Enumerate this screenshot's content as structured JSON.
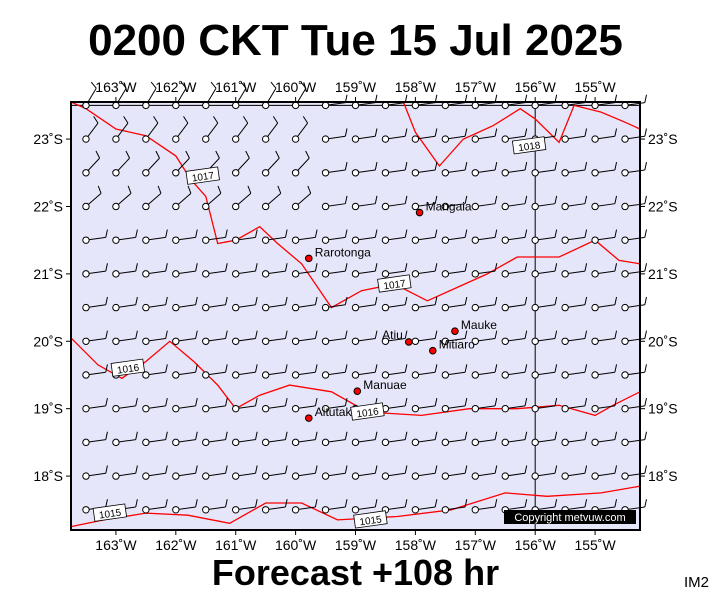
{
  "title": "0200 CKT Tue 15 Jul 2025",
  "footer": "Forecast +108 hr",
  "code": "IM2",
  "copyright": "Copyright metvuw.com",
  "colors": {
    "ocean": "#e6e6fa",
    "isobar": "#ff0000",
    "frame": "#000000",
    "place_dot": "#ff0000"
  },
  "chart_data": {
    "type": "map",
    "lon_range": [
      -163.75,
      -154.25
    ],
    "lat_range": [
      -23.55,
      -17.2
    ],
    "lon_ticks": [
      {
        "v": -163,
        "label": "163˚W"
      },
      {
        "v": -162,
        "label": "162˚W"
      },
      {
        "v": -161,
        "label": "161˚W"
      },
      {
        "v": -160,
        "label": "160˚W"
      },
      {
        "v": -159,
        "label": "159˚W"
      },
      {
        "v": -158,
        "label": "158˚W"
      },
      {
        "v": -157,
        "label": "157˚W"
      },
      {
        "v": -156,
        "label": "156˚W"
      },
      {
        "v": -155,
        "label": "155˚W"
      }
    ],
    "lat_ticks": [
      {
        "v": -18,
        "label": "18˚S"
      },
      {
        "v": -19,
        "label": "19˚S"
      },
      {
        "v": -20,
        "label": "20˚S"
      },
      {
        "v": -21,
        "label": "21˚S"
      },
      {
        "v": -22,
        "label": "22˚S"
      },
      {
        "v": -23,
        "label": "23˚S"
      }
    ],
    "places": [
      {
        "name": "Aitutaki",
        "lon": -159.78,
        "lat": -18.86,
        "label_side": "right"
      },
      {
        "name": "Manuae",
        "lon": -158.97,
        "lat": -19.26,
        "label_side": "right"
      },
      {
        "name": "Mitiaro",
        "lon": -157.71,
        "lat": -19.86,
        "label_side": "right"
      },
      {
        "name": "Atiu",
        "lon": -158.11,
        "lat": -19.99,
        "label_side": "left"
      },
      {
        "name": "Mauke",
        "lon": -157.34,
        "lat": -20.15,
        "label_side": "right"
      },
      {
        "name": "Rarotonga",
        "lon": -159.78,
        "lat": -21.23,
        "label_side": "right"
      },
      {
        "name": "Mangaia",
        "lon": -157.93,
        "lat": -21.91,
        "label_side": "right"
      }
    ],
    "isobars": [
      {
        "label": "1015",
        "label_at": [
          -163.1,
          -17.45
        ],
        "points": [
          [
            -163.75,
            -17.25
          ],
          [
            -163.2,
            -17.35
          ],
          [
            -162.5,
            -17.45
          ],
          [
            -161.8,
            -17.42
          ],
          [
            -161.1,
            -17.3
          ],
          [
            -160.5,
            -17.6
          ],
          [
            -159.9,
            -17.6
          ],
          [
            -159.3,
            -17.35
          ],
          [
            -158.3,
            -17.4
          ],
          [
            -157.4,
            -17.5
          ],
          [
            -156.5,
            -17.75
          ],
          [
            -155.8,
            -17.7
          ],
          [
            -154.9,
            -17.75
          ],
          [
            -154.25,
            -17.85
          ]
        ]
      },
      {
        "label": "1015",
        "label_at": [
          -158.75,
          -17.35
        ],
        "points": []
      },
      {
        "label": "1016",
        "label_at": [
          -158.8,
          -18.95
        ],
        "points": [
          [
            -163.75,
            -20.05
          ],
          [
            -163.3,
            -19.65
          ],
          [
            -162.9,
            -19.45
          ],
          [
            -162.5,
            -19.7
          ],
          [
            -162.1,
            -20.0
          ],
          [
            -161.7,
            -19.7
          ],
          [
            -161.3,
            -19.35
          ],
          [
            -161.0,
            -19.0
          ],
          [
            -160.6,
            -19.2
          ],
          [
            -160.1,
            -19.35
          ],
          [
            -159.4,
            -19.25
          ],
          [
            -158.8,
            -18.95
          ],
          [
            -157.9,
            -18.9
          ],
          [
            -157.1,
            -19.0
          ],
          [
            -156.3,
            -19.0
          ],
          [
            -155.6,
            -19.05
          ],
          [
            -155.0,
            -18.9
          ],
          [
            -154.7,
            -19.05
          ],
          [
            -154.25,
            -19.25
          ]
        ]
      },
      {
        "label": "1016",
        "label_at": [
          -162.8,
          -19.6
        ],
        "points": []
      },
      {
        "label": "1017",
        "label_at": [
          -158.35,
          -20.85
        ],
        "points": [
          [
            -154.25,
            -21.15
          ],
          [
            -154.6,
            -21.2
          ],
          [
            -155.0,
            -21.5
          ],
          [
            -155.6,
            -21.25
          ],
          [
            -156.3,
            -21.25
          ],
          [
            -156.8,
            -21.0
          ],
          [
            -157.3,
            -20.8
          ],
          [
            -157.8,
            -20.6
          ],
          [
            -158.35,
            -20.85
          ],
          [
            -158.9,
            -20.75
          ],
          [
            -159.4,
            -20.5
          ],
          [
            -159.9,
            -21.15
          ],
          [
            -160.3,
            -21.45
          ],
          [
            -160.6,
            -21.7
          ],
          [
            -161.0,
            -21.5
          ],
          [
            -161.3,
            -21.45
          ],
          [
            -161.5,
            -22.15
          ],
          [
            -161.75,
            -22.4
          ],
          [
            -162.0,
            -22.75
          ],
          [
            -162.5,
            -23.05
          ],
          [
            -163.0,
            -23.15
          ],
          [
            -163.5,
            -23.45
          ],
          [
            -163.75,
            -23.55
          ]
        ]
      },
      {
        "label": "1017",
        "label_at": [
          -161.55,
          -22.45
        ],
        "points": []
      },
      {
        "label": "1018",
        "label_at": [
          -156.1,
          -22.9
        ],
        "points": [
          [
            -158.2,
            -23.55
          ],
          [
            -158.0,
            -23.1
          ],
          [
            -157.6,
            -22.6
          ],
          [
            -157.2,
            -23.0
          ],
          [
            -156.7,
            -23.2
          ],
          [
            -156.25,
            -23.45
          ],
          [
            -156.0,
            -23.3
          ],
          [
            -155.6,
            -22.95
          ],
          [
            -155.35,
            -23.5
          ],
          [
            -154.9,
            -23.4
          ],
          [
            -154.5,
            -23.25
          ],
          [
            -154.25,
            -23.15
          ]
        ]
      }
    ],
    "station_grid": {
      "lon_start": -163.5,
      "lon_step": 0.5,
      "lon_count": 19,
      "lat_start": -17.5,
      "lat_step": -0.5,
      "lat_count": 13
    }
  }
}
